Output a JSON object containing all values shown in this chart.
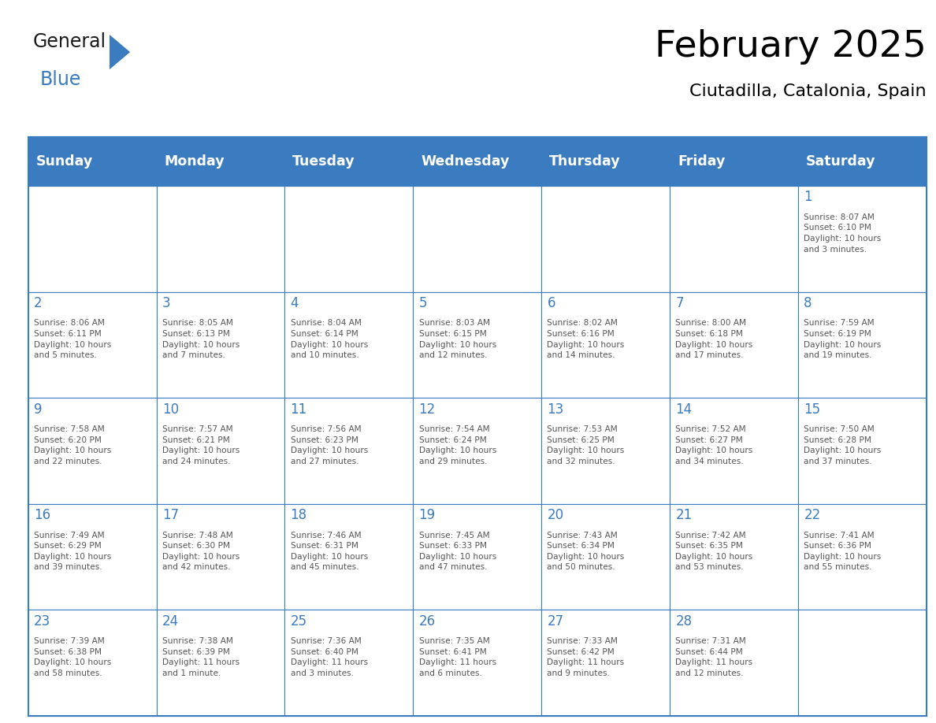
{
  "title": "February 2025",
  "subtitle": "Ciutadilla, Catalonia, Spain",
  "header_bg_color": "#3b7bbf",
  "header_text_color": "#ffffff",
  "cell_bg_color": "#ffffff",
  "cell_border_color": "#3b7bbf",
  "day_number_color": "#3b7bbf",
  "cell_text_color": "#555555",
  "days_of_week": [
    "Sunday",
    "Monday",
    "Tuesday",
    "Wednesday",
    "Thursday",
    "Friday",
    "Saturday"
  ],
  "calendar": [
    [
      {
        "day": "",
        "info": ""
      },
      {
        "day": "",
        "info": ""
      },
      {
        "day": "",
        "info": ""
      },
      {
        "day": "",
        "info": ""
      },
      {
        "day": "",
        "info": ""
      },
      {
        "day": "",
        "info": ""
      },
      {
        "day": "1",
        "info": "Sunrise: 8:07 AM\nSunset: 6:10 PM\nDaylight: 10 hours\nand 3 minutes."
      }
    ],
    [
      {
        "day": "2",
        "info": "Sunrise: 8:06 AM\nSunset: 6:11 PM\nDaylight: 10 hours\nand 5 minutes."
      },
      {
        "day": "3",
        "info": "Sunrise: 8:05 AM\nSunset: 6:13 PM\nDaylight: 10 hours\nand 7 minutes."
      },
      {
        "day": "4",
        "info": "Sunrise: 8:04 AM\nSunset: 6:14 PM\nDaylight: 10 hours\nand 10 minutes."
      },
      {
        "day": "5",
        "info": "Sunrise: 8:03 AM\nSunset: 6:15 PM\nDaylight: 10 hours\nand 12 minutes."
      },
      {
        "day": "6",
        "info": "Sunrise: 8:02 AM\nSunset: 6:16 PM\nDaylight: 10 hours\nand 14 minutes."
      },
      {
        "day": "7",
        "info": "Sunrise: 8:00 AM\nSunset: 6:18 PM\nDaylight: 10 hours\nand 17 minutes."
      },
      {
        "day": "8",
        "info": "Sunrise: 7:59 AM\nSunset: 6:19 PM\nDaylight: 10 hours\nand 19 minutes."
      }
    ],
    [
      {
        "day": "9",
        "info": "Sunrise: 7:58 AM\nSunset: 6:20 PM\nDaylight: 10 hours\nand 22 minutes."
      },
      {
        "day": "10",
        "info": "Sunrise: 7:57 AM\nSunset: 6:21 PM\nDaylight: 10 hours\nand 24 minutes."
      },
      {
        "day": "11",
        "info": "Sunrise: 7:56 AM\nSunset: 6:23 PM\nDaylight: 10 hours\nand 27 minutes."
      },
      {
        "day": "12",
        "info": "Sunrise: 7:54 AM\nSunset: 6:24 PM\nDaylight: 10 hours\nand 29 minutes."
      },
      {
        "day": "13",
        "info": "Sunrise: 7:53 AM\nSunset: 6:25 PM\nDaylight: 10 hours\nand 32 minutes."
      },
      {
        "day": "14",
        "info": "Sunrise: 7:52 AM\nSunset: 6:27 PM\nDaylight: 10 hours\nand 34 minutes."
      },
      {
        "day": "15",
        "info": "Sunrise: 7:50 AM\nSunset: 6:28 PM\nDaylight: 10 hours\nand 37 minutes."
      }
    ],
    [
      {
        "day": "16",
        "info": "Sunrise: 7:49 AM\nSunset: 6:29 PM\nDaylight: 10 hours\nand 39 minutes."
      },
      {
        "day": "17",
        "info": "Sunrise: 7:48 AM\nSunset: 6:30 PM\nDaylight: 10 hours\nand 42 minutes."
      },
      {
        "day": "18",
        "info": "Sunrise: 7:46 AM\nSunset: 6:31 PM\nDaylight: 10 hours\nand 45 minutes."
      },
      {
        "day": "19",
        "info": "Sunrise: 7:45 AM\nSunset: 6:33 PM\nDaylight: 10 hours\nand 47 minutes."
      },
      {
        "day": "20",
        "info": "Sunrise: 7:43 AM\nSunset: 6:34 PM\nDaylight: 10 hours\nand 50 minutes."
      },
      {
        "day": "21",
        "info": "Sunrise: 7:42 AM\nSunset: 6:35 PM\nDaylight: 10 hours\nand 53 minutes."
      },
      {
        "day": "22",
        "info": "Sunrise: 7:41 AM\nSunset: 6:36 PM\nDaylight: 10 hours\nand 55 minutes."
      }
    ],
    [
      {
        "day": "23",
        "info": "Sunrise: 7:39 AM\nSunset: 6:38 PM\nDaylight: 10 hours\nand 58 minutes."
      },
      {
        "day": "24",
        "info": "Sunrise: 7:38 AM\nSunset: 6:39 PM\nDaylight: 11 hours\nand 1 minute."
      },
      {
        "day": "25",
        "info": "Sunrise: 7:36 AM\nSunset: 6:40 PM\nDaylight: 11 hours\nand 3 minutes."
      },
      {
        "day": "26",
        "info": "Sunrise: 7:35 AM\nSunset: 6:41 PM\nDaylight: 11 hours\nand 6 minutes."
      },
      {
        "day": "27",
        "info": "Sunrise: 7:33 AM\nSunset: 6:42 PM\nDaylight: 11 hours\nand 9 minutes."
      },
      {
        "day": "28",
        "info": "Sunrise: 7:31 AM\nSunset: 6:44 PM\nDaylight: 11 hours\nand 12 minutes."
      },
      {
        "day": "",
        "info": ""
      }
    ]
  ]
}
